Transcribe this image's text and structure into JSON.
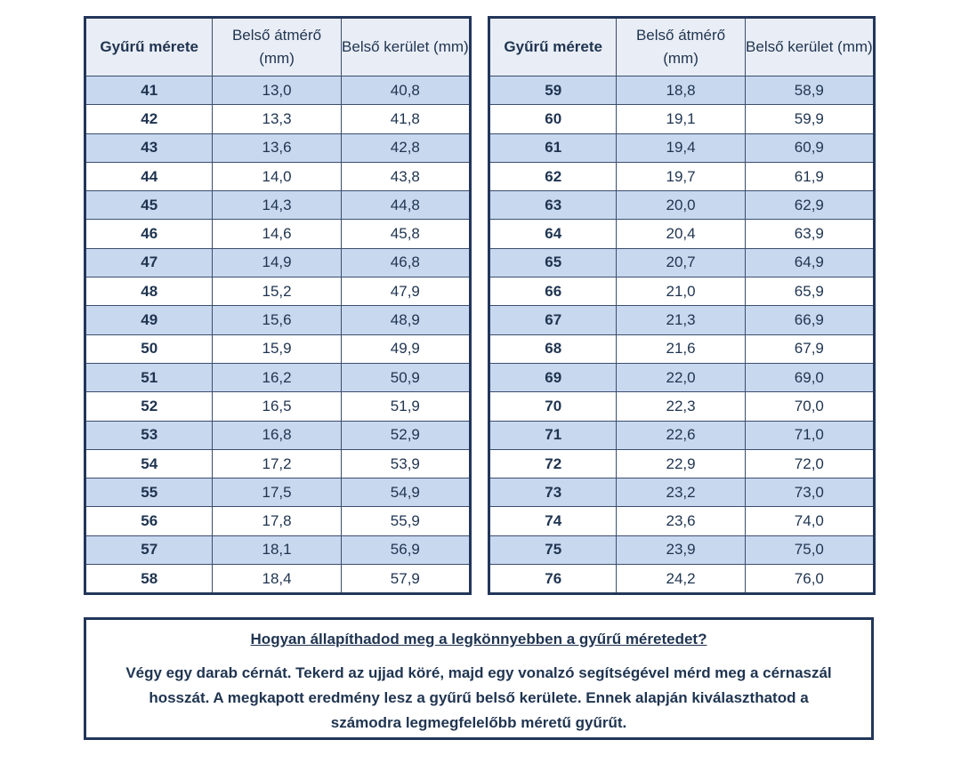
{
  "tables": [
    {
      "headers": [
        "Gyűrű mérete",
        "Belső átmérő (mm)",
        "Belső kerület (mm)"
      ],
      "rows": [
        [
          "41",
          "13,0",
          "40,8"
        ],
        [
          "42",
          "13,3",
          "41,8"
        ],
        [
          "43",
          "13,6",
          "42,8"
        ],
        [
          "44",
          "14,0",
          "43,8"
        ],
        [
          "45",
          "14,3",
          "44,8"
        ],
        [
          "46",
          "14,6",
          "45,8"
        ],
        [
          "47",
          "14,9",
          "46,8"
        ],
        [
          "48",
          "15,2",
          "47,9"
        ],
        [
          "49",
          "15,6",
          "48,9"
        ],
        [
          "50",
          "15,9",
          "49,9"
        ],
        [
          "51",
          "16,2",
          "50,9"
        ],
        [
          "52",
          "16,5",
          "51,9"
        ],
        [
          "53",
          "16,8",
          "52,9"
        ],
        [
          "54",
          "17,2",
          "53,9"
        ],
        [
          "55",
          "17,5",
          "54,9"
        ],
        [
          "56",
          "17,8",
          "55,9"
        ],
        [
          "57",
          "18,1",
          "56,9"
        ],
        [
          "58",
          "18,4",
          "57,9"
        ]
      ]
    },
    {
      "headers": [
        "Gyűrű mérete",
        "Belső átmérő (mm)",
        "Belső kerület (mm)"
      ],
      "rows": [
        [
          "59",
          "18,8",
          "58,9"
        ],
        [
          "60",
          "19,1",
          "59,9"
        ],
        [
          "61",
          "19,4",
          "60,9"
        ],
        [
          "62",
          "19,7",
          "61,9"
        ],
        [
          "63",
          "20,0",
          "62,9"
        ],
        [
          "64",
          "20,4",
          "63,9"
        ],
        [
          "65",
          "20,7",
          "64,9"
        ],
        [
          "66",
          "21,0",
          "65,9"
        ],
        [
          "67",
          "21,3",
          "66,9"
        ],
        [
          "68",
          "21,6",
          "67,9"
        ],
        [
          "69",
          "22,0",
          "69,0"
        ],
        [
          "70",
          "22,3",
          "70,0"
        ],
        [
          "71",
          "22,6",
          "71,0"
        ],
        [
          "72",
          "22,9",
          "72,0"
        ],
        [
          "73",
          "23,2",
          "73,0"
        ],
        [
          "74",
          "23,6",
          "74,0"
        ],
        [
          "75",
          "23,9",
          "75,0"
        ],
        [
          "76",
          "24,2",
          "76,0"
        ]
      ]
    }
  ],
  "info": {
    "title": "Hogyan állapíthadod meg a legkönnyebben a gyűrű méretedet?",
    "body": "Végy egy darab cérnát. Tekerd az ujjad köré, majd egy vonalzó segítségével mérd meg a cérnaszál hosszát. A megkapott eredmény lesz a gyűrű belső kerülete. Ennek alapján kiválaszthatod a számodra legmegfelelőbb méretű gyűrűt."
  },
  "colors": {
    "border": "#22365a",
    "row_shaded": "#c8d8ee",
    "header_bg": "#e9edf5",
    "text": "#1f3450"
  }
}
